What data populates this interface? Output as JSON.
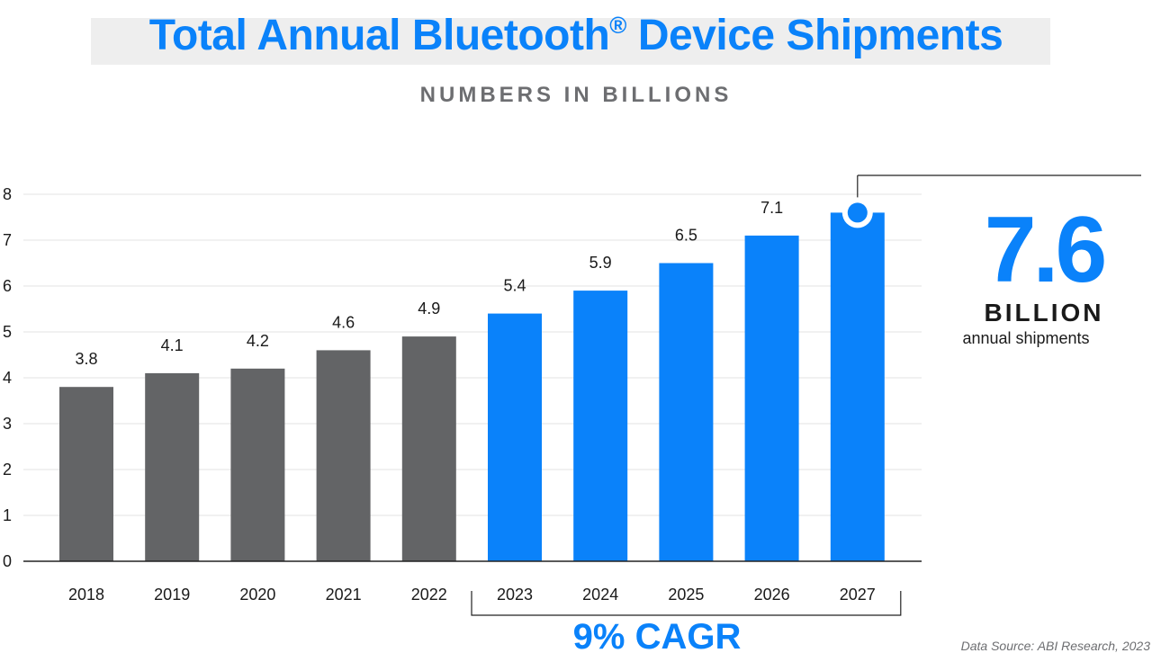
{
  "header": {
    "title": "Total Annual Bluetooth",
    "title_mark": "®",
    "title_end": "Device Shipments",
    "subtitle": "NUMBERS IN BILLIONS"
  },
  "highlight": {
    "value": "7.6",
    "unit": "BILLION",
    "description": "annual shipments"
  },
  "cagr_label": "9% CAGR",
  "source": "Data Source: ABI Research, 2023",
  "colors": {
    "historical": "#636466",
    "forecast": "#0a82fa",
    "grid": "#e3e3e3",
    "axis": "#222222"
  },
  "chart_data": {
    "type": "bar",
    "title": "Total Annual Bluetooth® Device Shipments",
    "subtitle": "NUMBERS IN BILLIONS",
    "xlabel": "",
    "ylabel": "",
    "ylim": [
      0,
      8
    ],
    "yticks": [
      0,
      1,
      2,
      3,
      4,
      5,
      6,
      7,
      8
    ],
    "grid": true,
    "categories": [
      "2018",
      "2019",
      "2020",
      "2021",
      "2022",
      "2023",
      "2024",
      "2025",
      "2026",
      "2027"
    ],
    "values": [
      3.8,
      4.1,
      4.2,
      4.6,
      4.9,
      5.4,
      5.9,
      6.5,
      7.1,
      7.6
    ],
    "value_labels": [
      "3.8",
      "4.1",
      "4.2",
      "4.6",
      "4.9",
      "5.4",
      "5.9",
      "6.5",
      "7.1",
      ""
    ],
    "forecast_start_index": 5
  }
}
